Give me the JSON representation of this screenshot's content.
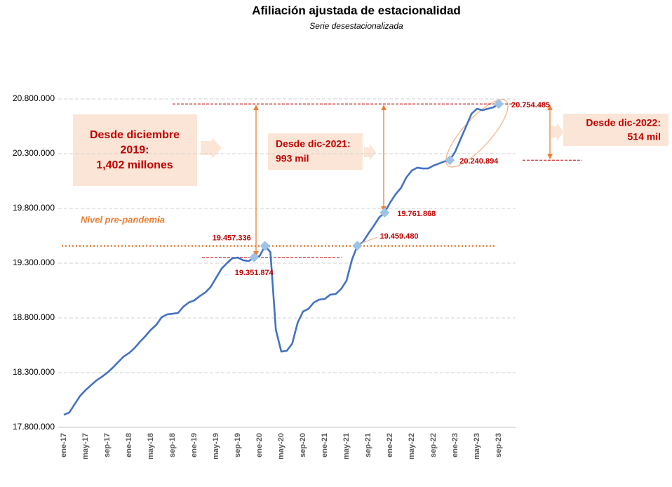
{
  "chart_data": {
    "type": "line",
    "title": "Afiliación ajustada de estacionalidad",
    "subtitle": "Serie desestacionalizada",
    "color": "#4472c4",
    "categories": [
      "ene-17",
      null,
      null,
      null,
      "may-17",
      null,
      null,
      null,
      "sep-17",
      null,
      null,
      null,
      "ene-18",
      null,
      null,
      null,
      "may-18",
      null,
      null,
      null,
      "sep-18",
      null,
      null,
      null,
      "ene-19",
      null,
      null,
      null,
      "may-19",
      null,
      null,
      null,
      "sep-19",
      null,
      null,
      null,
      "ene-20",
      null,
      null,
      null,
      "may-20",
      null,
      null,
      null,
      "sep-20",
      null,
      null,
      null,
      "ene-21",
      null,
      null,
      null,
      "may-21",
      null,
      null,
      null,
      "sep-21",
      null,
      null,
      null,
      "ene-22",
      null,
      null,
      null,
      "may-22",
      null,
      null,
      null,
      "sep-22",
      null,
      null,
      null,
      "ene-23",
      null,
      null,
      null,
      "may-23",
      null,
      null,
      null,
      "sep-23"
    ],
    "values": [
      17915000,
      17935000,
      18012000,
      18088000,
      18140000,
      18185000,
      18229000,
      18262000,
      18300000,
      18345000,
      18396000,
      18447000,
      18479000,
      18524000,
      18582000,
      18633000,
      18691000,
      18736000,
      18806000,
      18832000,
      18838000,
      18845000,
      18903000,
      18941000,
      18960000,
      18999000,
      19031000,
      19082000,
      19165000,
      19249000,
      19300000,
      19345000,
      19351000,
      19326000,
      19319000,
      19351874,
      19364000,
      19457336,
      19400000,
      18691000,
      18492000,
      18499000,
      18563000,
      18755000,
      18858000,
      18883000,
      18941000,
      18967000,
      18973000,
      19012000,
      19018000,
      19063000,
      19140000,
      19332000,
      19459480,
      19492000,
      19569000,
      19640000,
      19717000,
      19761868,
      19851000,
      19928000,
      19986000,
      20082000,
      20146000,
      20172000,
      20165000,
      20165000,
      20191000,
      20210000,
      20229000,
      20240894,
      20319000,
      20435000,
      20550000,
      20665000,
      20710000,
      20697000,
      20710000,
      20723000,
      20754485
    ],
    "value_labels": [
      null,
      null,
      null,
      null,
      null,
      null,
      null,
      null,
      null,
      null,
      null,
      null,
      null,
      null,
      null,
      null,
      null,
      null,
      null,
      null,
      null,
      null,
      null,
      null,
      null,
      null,
      null,
      null,
      null,
      null,
      null,
      null,
      null,
      null,
      null,
      "19.351.874",
      null,
      "19.457.336",
      null,
      null,
      null,
      null,
      null,
      null,
      null,
      null,
      null,
      null,
      null,
      null,
      null,
      null,
      null,
      null,
      "19.459.480",
      null,
      null,
      null,
      null,
      "19.761.868",
      null,
      null,
      null,
      null,
      null,
      null,
      null,
      null,
      null,
      null,
      null,
      "20.240.894",
      null,
      null,
      null,
      null,
      null,
      null,
      null,
      null,
      "20.754.485"
    ],
    "ylim": [
      17800000,
      20800000
    ],
    "yticks": [
      {
        "value": 17800000,
        "label": "17.800.000"
      },
      {
        "value": 18300000,
        "label": "18.300.000"
      },
      {
        "value": 18800000,
        "label": "18.800.000"
      },
      {
        "value": 19300000,
        "label": "19.300.000"
      },
      {
        "value": 19800000,
        "label": "19.800.000"
      },
      {
        "value": 20300000,
        "label": "20.300.000"
      },
      {
        "value": 20800000,
        "label": "20.800.000"
      }
    ],
    "grid": true,
    "reference_label": "Nivel pre-pandemia",
    "annotations": [
      {
        "lines": [
          "Desde diciembre",
          "2019:",
          "1,402 millones"
        ]
      },
      {
        "lines": [
          "Desde dic-2021:",
          "993 mil"
        ]
      },
      {
        "lines": [
          "Desde dic-2022:",
          "514 mil"
        ]
      }
    ]
  }
}
